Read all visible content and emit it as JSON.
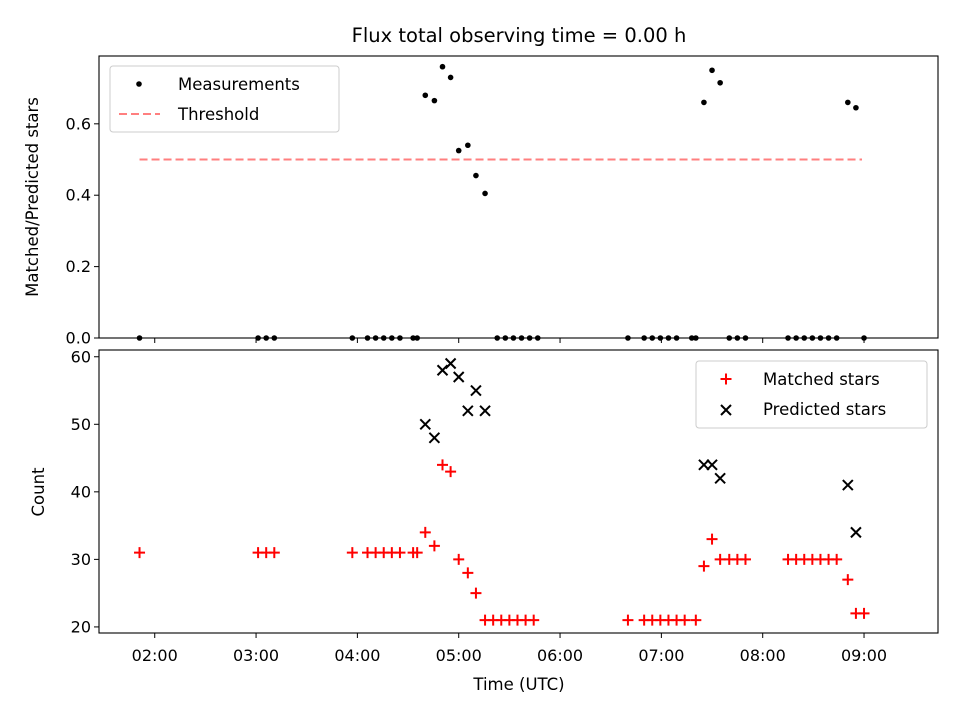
{
  "chart_data": {
    "title": "Flux total observing time = 0.00 h",
    "x_axis": {
      "label": "Time (UTC)",
      "unit": "hours",
      "range": [
        1.45,
        9.73
      ],
      "ticks": [
        {
          "value": 2,
          "label": "02:00"
        },
        {
          "value": 3,
          "label": "03:00"
        },
        {
          "value": 4,
          "label": "04:00"
        },
        {
          "value": 5,
          "label": "05:00"
        },
        {
          "value": 6,
          "label": "06:00"
        },
        {
          "value": 7,
          "label": "07:00"
        },
        {
          "value": 8,
          "label": "08:00"
        },
        {
          "value": 9,
          "label": "09:00"
        }
      ]
    },
    "panels": [
      {
        "type": "scatter",
        "ylabel": "Matched/Predicted stars",
        "ylim": [
          0,
          0.79
        ],
        "yticks": [
          {
            "value": 0,
            "label": "0.0"
          },
          {
            "value": 0.2,
            "label": "0.2"
          },
          {
            "value": 0.4,
            "label": "0.4"
          },
          {
            "value": 0.6,
            "label": "0.6"
          }
        ],
        "legend_position": "top-left",
        "legend": [
          {
            "name": "Measurements",
            "marker": "dot",
            "color": "#000000"
          },
          {
            "name": "Threshold",
            "marker": "dashed-line",
            "color": "#ff7f7f"
          }
        ],
        "threshold": {
          "name": "Threshold",
          "value": 0.5,
          "x_range": [
            1.85,
            8.98
          ],
          "color": "#ff7f7f"
        },
        "series": [
          {
            "name": "Measurements",
            "color": "#000000",
            "points": [
              [
                1.85,
                0
              ],
              [
                3.02,
                0
              ],
              [
                3.1,
                0
              ],
              [
                3.18,
                0
              ],
              [
                3.95,
                0
              ],
              [
                4.1,
                0
              ],
              [
                4.18,
                0
              ],
              [
                4.26,
                0
              ],
              [
                4.34,
                0
              ],
              [
                4.42,
                0
              ],
              [
                4.55,
                0
              ],
              [
                4.59,
                0
              ],
              [
                4.67,
                0.68
              ],
              [
                4.76,
                0.665
              ],
              [
                4.84,
                0.76
              ],
              [
                4.92,
                0.73
              ],
              [
                5.0,
                0.525
              ],
              [
                5.09,
                0.54
              ],
              [
                5.17,
                0.455
              ],
              [
                5.26,
                0.405
              ],
              [
                5.38,
                0
              ],
              [
                5.46,
                0
              ],
              [
                5.54,
                0
              ],
              [
                5.62,
                0
              ],
              [
                5.7,
                0
              ],
              [
                5.78,
                0
              ],
              [
                6.67,
                0
              ],
              [
                6.83,
                0
              ],
              [
                6.91,
                0
              ],
              [
                6.99,
                0
              ],
              [
                7.07,
                0
              ],
              [
                7.15,
                0
              ],
              [
                7.3,
                0
              ],
              [
                7.34,
                0
              ],
              [
                7.42,
                0.66
              ],
              [
                7.5,
                0.75
              ],
              [
                7.58,
                0.715
              ],
              [
                7.67,
                0
              ],
              [
                7.75,
                0
              ],
              [
                7.83,
                0
              ],
              [
                8.25,
                0
              ],
              [
                8.33,
                0
              ],
              [
                8.41,
                0
              ],
              [
                8.49,
                0
              ],
              [
                8.57,
                0
              ],
              [
                8.65,
                0
              ],
              [
                8.73,
                0
              ],
              [
                8.84,
                0.66
              ],
              [
                8.92,
                0.645
              ],
              [
                9.0,
                0
              ]
            ]
          }
        ]
      },
      {
        "type": "scatter",
        "ylabel": "Count",
        "ylim": [
          19.1,
          61
        ],
        "yticks": [
          {
            "value": 20,
            "label": "20"
          },
          {
            "value": 30,
            "label": "30"
          },
          {
            "value": 40,
            "label": "40"
          },
          {
            "value": 50,
            "label": "50"
          },
          {
            "value": 60,
            "label": "60"
          }
        ],
        "legend_position": "top-right",
        "legend": [
          {
            "name": "Matched stars",
            "marker": "plus",
            "color": "#ff0000"
          },
          {
            "name": "Predicted stars",
            "marker": "x",
            "color": "#000000"
          }
        ],
        "series": [
          {
            "name": "Matched stars",
            "marker": "plus",
            "color": "#ff0000",
            "points": [
              [
                1.85,
                31
              ],
              [
                3.02,
                31
              ],
              [
                3.1,
                31
              ],
              [
                3.18,
                31
              ],
              [
                3.95,
                31
              ],
              [
                4.1,
                31
              ],
              [
                4.18,
                31
              ],
              [
                4.26,
                31
              ],
              [
                4.34,
                31
              ],
              [
                4.42,
                31
              ],
              [
                4.55,
                31
              ],
              [
                4.59,
                31
              ],
              [
                4.67,
                34
              ],
              [
                4.76,
                32
              ],
              [
                4.84,
                44
              ],
              [
                4.92,
                43
              ],
              [
                5.0,
                30
              ],
              [
                5.09,
                28
              ],
              [
                5.17,
                25
              ],
              [
                5.26,
                21
              ],
              [
                5.34,
                21
              ],
              [
                5.42,
                21
              ],
              [
                5.5,
                21
              ],
              [
                5.58,
                21
              ],
              [
                5.66,
                21
              ],
              [
                5.74,
                21
              ],
              [
                6.67,
                21
              ],
              [
                6.83,
                21
              ],
              [
                6.91,
                21
              ],
              [
                6.99,
                21
              ],
              [
                7.07,
                21
              ],
              [
                7.15,
                21
              ],
              [
                7.23,
                21
              ],
              [
                7.34,
                21
              ],
              [
                7.42,
                29
              ],
              [
                7.5,
                33
              ],
              [
                7.58,
                30
              ],
              [
                7.67,
                30
              ],
              [
                7.75,
                30
              ],
              [
                7.83,
                30
              ],
              [
                8.25,
                30
              ],
              [
                8.33,
                30
              ],
              [
                8.41,
                30
              ],
              [
                8.49,
                30
              ],
              [
                8.57,
                30
              ],
              [
                8.65,
                30
              ],
              [
                8.73,
                30
              ],
              [
                8.84,
                27
              ],
              [
                8.92,
                22
              ],
              [
                9.0,
                22
              ]
            ]
          },
          {
            "name": "Predicted stars",
            "marker": "x",
            "color": "#000000",
            "points": [
              [
                4.67,
                50
              ],
              [
                4.76,
                48
              ],
              [
                4.84,
                58
              ],
              [
                4.92,
                59
              ],
              [
                5.0,
                57
              ],
              [
                5.09,
                52
              ],
              [
                5.17,
                55
              ],
              [
                5.26,
                52
              ],
              [
                7.42,
                44
              ],
              [
                7.5,
                44
              ],
              [
                7.58,
                42
              ],
              [
                8.84,
                41
              ],
              [
                8.92,
                34
              ]
            ]
          }
        ]
      }
    ]
  }
}
